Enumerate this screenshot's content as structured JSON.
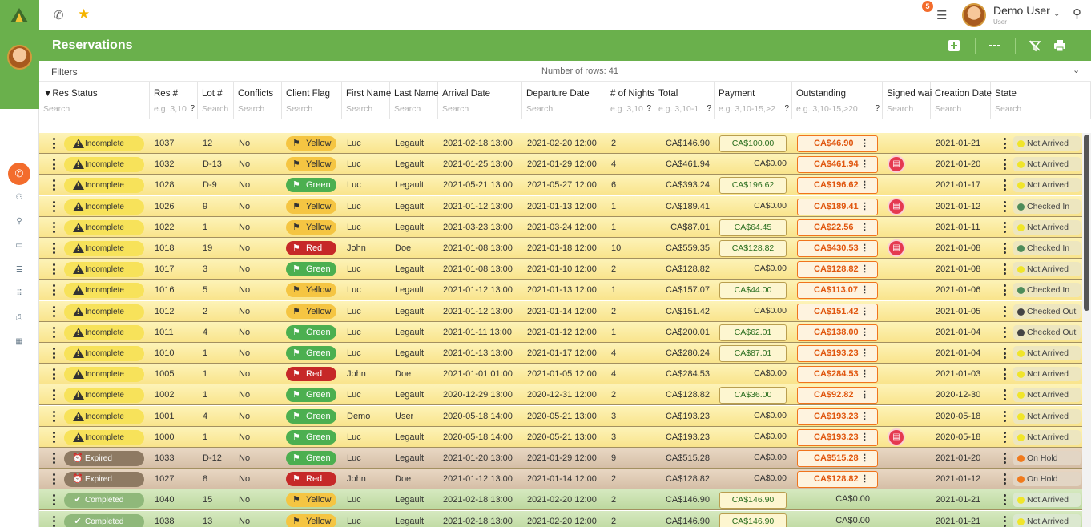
{
  "topbar": {
    "notification_count": "5",
    "user_name": "Demo User",
    "user_role": "User"
  },
  "page": {
    "title": "Reservations",
    "filters_label": "Filters",
    "rows_count_label": "Number of rows: 41"
  },
  "columns": [
    {
      "label": "▼Res Status",
      "placeholder": "Search",
      "help": ""
    },
    {
      "label": "Res #",
      "placeholder": "e.g. 3,10",
      "help": "?"
    },
    {
      "label": "Lot #",
      "placeholder": "Search",
      "help": ""
    },
    {
      "label": "Conflicts",
      "placeholder": "Search",
      "help": ""
    },
    {
      "label": "Client Flag",
      "placeholder": "Search",
      "help": ""
    },
    {
      "label": "First Name",
      "placeholder": "Search",
      "help": ""
    },
    {
      "label": "Last Name",
      "placeholder": "Search",
      "help": ""
    },
    {
      "label": "Arrival Date",
      "placeholder": "Search",
      "help": ""
    },
    {
      "label": "Departure Date",
      "placeholder": "Search",
      "help": ""
    },
    {
      "label": "# of Nights",
      "placeholder": "e.g. 3,10",
      "help": "?"
    },
    {
      "label": "Total",
      "placeholder": "e.g. 3,10-1",
      "help": "?"
    },
    {
      "label": "Payment",
      "placeholder": "e.g. 3,10-15,>2",
      "help": "?"
    },
    {
      "label": "Outstanding",
      "placeholder": "e.g. 3,10-15,>20",
      "help": "?"
    },
    {
      "label": "Signed wai",
      "placeholder": "Search",
      "help": ""
    },
    {
      "label": "Creation Date",
      "placeholder": "Search",
      "help": ""
    },
    {
      "label": "State",
      "placeholder": "Search",
      "help": ""
    }
  ],
  "colors": {
    "green": "#6ab04c",
    "orange": "#f36c2c",
    "star": "#f5b400"
  },
  "rows": [
    {
      "kind": "inc",
      "status": "Incomplete",
      "res": "1037",
      "lot": "12",
      "conflicts": "No",
      "flag": "Yellow",
      "flag_kind": "yellow",
      "first": "Luc",
      "last": "Legault",
      "arrival": "2021-02-18 13:00",
      "departure": "2021-02-20 12:00",
      "nights": "2",
      "total": "CA$146.90",
      "payment": "CA$100.00",
      "payment_boxed": true,
      "outstanding": "CA$46.90",
      "outstanding_boxed": true,
      "signed": false,
      "created": "2021-01-21",
      "state": "Not Arrived",
      "state_color": "#f0e52a"
    },
    {
      "kind": "inc",
      "status": "Incomplete",
      "res": "1032",
      "lot": "D-13",
      "conflicts": "No",
      "flag": "Yellow",
      "flag_kind": "yellow",
      "first": "Luc",
      "last": "Legault",
      "arrival": "2021-01-25 13:00",
      "departure": "2021-01-29 12:00",
      "nights": "4",
      "total": "CA$461.94",
      "payment": "CA$0.00",
      "payment_boxed": false,
      "outstanding": "CA$461.94",
      "outstanding_boxed": true,
      "signed": true,
      "created": "2021-01-20",
      "state": "Not Arrived",
      "state_color": "#f0e52a"
    },
    {
      "kind": "inc",
      "status": "Incomplete",
      "res": "1028",
      "lot": "D-9",
      "conflicts": "No",
      "flag": "Green",
      "flag_kind": "green",
      "first": "Luc",
      "last": "Legault",
      "arrival": "2021-05-21 13:00",
      "departure": "2021-05-27 12:00",
      "nights": "6",
      "total": "CA$393.24",
      "payment": "CA$196.62",
      "payment_boxed": true,
      "outstanding": "CA$196.62",
      "outstanding_boxed": true,
      "signed": false,
      "created": "2021-01-17",
      "state": "Not Arrived",
      "state_color": "#f0e52a"
    },
    {
      "kind": "inc",
      "status": "Incomplete",
      "res": "1026",
      "lot": "9",
      "conflicts": "No",
      "flag": "Yellow",
      "flag_kind": "yellow",
      "first": "Luc",
      "last": "Legault",
      "arrival": "2021-01-12 13:00",
      "departure": "2021-01-13 12:00",
      "nights": "1",
      "total": "CA$189.41",
      "payment": "CA$0.00",
      "payment_boxed": false,
      "outstanding": "CA$189.41",
      "outstanding_boxed": true,
      "signed": true,
      "created": "2021-01-12",
      "state": "Checked In",
      "state_color": "#4e8c5a"
    },
    {
      "kind": "inc",
      "status": "Incomplete",
      "res": "1022",
      "lot": "1",
      "conflicts": "No",
      "flag": "Yellow",
      "flag_kind": "yellow",
      "first": "Luc",
      "last": "Legault",
      "arrival": "2021-03-23 13:00",
      "departure": "2021-03-24 12:00",
      "nights": "1",
      "total": "CA$87.01",
      "payment": "CA$64.45",
      "payment_boxed": true,
      "outstanding": "CA$22.56",
      "outstanding_boxed": true,
      "signed": false,
      "created": "2021-01-11",
      "state": "Not Arrived",
      "state_color": "#f0e52a"
    },
    {
      "kind": "inc",
      "status": "Incomplete",
      "res": "1018",
      "lot": "19",
      "conflicts": "No",
      "flag": "Red",
      "flag_kind": "red",
      "first": "John",
      "last": "Doe",
      "arrival": "2021-01-08 13:00",
      "departure": "2021-01-18 12:00",
      "nights": "10",
      "total": "CA$559.35",
      "payment": "CA$128.82",
      "payment_boxed": true,
      "outstanding": "CA$430.53",
      "outstanding_boxed": true,
      "signed": true,
      "created": "2021-01-08",
      "state": "Checked In",
      "state_color": "#4e8c5a"
    },
    {
      "kind": "inc",
      "status": "Incomplete",
      "res": "1017",
      "lot": "3",
      "conflicts": "No",
      "flag": "Green",
      "flag_kind": "green",
      "first": "Luc",
      "last": "Legault",
      "arrival": "2021-01-08 13:00",
      "departure": "2021-01-10 12:00",
      "nights": "2",
      "total": "CA$128.82",
      "payment": "CA$0.00",
      "payment_boxed": false,
      "outstanding": "CA$128.82",
      "outstanding_boxed": true,
      "signed": false,
      "created": "2021-01-08",
      "state": "Not Arrived",
      "state_color": "#f0e52a"
    },
    {
      "kind": "inc",
      "status": "Incomplete",
      "res": "1016",
      "lot": "5",
      "conflicts": "No",
      "flag": "Yellow",
      "flag_kind": "yellow",
      "first": "Luc",
      "last": "Legault",
      "arrival": "2021-01-12 13:00",
      "departure": "2021-01-13 12:00",
      "nights": "1",
      "total": "CA$157.07",
      "payment": "CA$44.00",
      "payment_boxed": true,
      "outstanding": "CA$113.07",
      "outstanding_boxed": true,
      "signed": false,
      "created": "2021-01-06",
      "state": "Checked In",
      "state_color": "#4e8c5a"
    },
    {
      "kind": "inc",
      "status": "Incomplete",
      "res": "1012",
      "lot": "2",
      "conflicts": "No",
      "flag": "Yellow",
      "flag_kind": "yellow",
      "first": "Luc",
      "last": "Legault",
      "arrival": "2021-01-12 13:00",
      "departure": "2021-01-14 12:00",
      "nights": "2",
      "total": "CA$151.42",
      "payment": "CA$0.00",
      "payment_boxed": false,
      "outstanding": "CA$151.42",
      "outstanding_boxed": true,
      "signed": false,
      "created": "2021-01-05",
      "state": "Checked Out",
      "state_color": "#444444"
    },
    {
      "kind": "inc",
      "status": "Incomplete",
      "res": "1011",
      "lot": "4",
      "conflicts": "No",
      "flag": "Green",
      "flag_kind": "green",
      "first": "Luc",
      "last": "Legault",
      "arrival": "2021-01-11 13:00",
      "departure": "2021-01-12 12:00",
      "nights": "1",
      "total": "CA$200.01",
      "payment": "CA$62.01",
      "payment_boxed": true,
      "outstanding": "CA$138.00",
      "outstanding_boxed": true,
      "signed": false,
      "created": "2021-01-04",
      "state": "Checked Out",
      "state_color": "#444444"
    },
    {
      "kind": "inc",
      "status": "Incomplete",
      "res": "1010",
      "lot": "1",
      "conflicts": "No",
      "flag": "Green",
      "flag_kind": "green",
      "first": "Luc",
      "last": "Legault",
      "arrival": "2021-01-13 13:00",
      "departure": "2021-01-17 12:00",
      "nights": "4",
      "total": "CA$280.24",
      "payment": "CA$87.01",
      "payment_boxed": true,
      "outstanding": "CA$193.23",
      "outstanding_boxed": true,
      "signed": false,
      "created": "2021-01-04",
      "state": "Not Arrived",
      "state_color": "#f0e52a"
    },
    {
      "kind": "inc",
      "status": "Incomplete",
      "res": "1005",
      "lot": "1",
      "conflicts": "No",
      "flag": "Red",
      "flag_kind": "red",
      "first": "John",
      "last": "Doe",
      "arrival": "2021-01-01 01:00",
      "departure": "2021-01-05 12:00",
      "nights": "4",
      "total": "CA$284.53",
      "payment": "CA$0.00",
      "payment_boxed": false,
      "outstanding": "CA$284.53",
      "outstanding_boxed": true,
      "signed": false,
      "created": "2021-01-03",
      "state": "Not Arrived",
      "state_color": "#f0e52a"
    },
    {
      "kind": "inc",
      "status": "Incomplete",
      "res": "1002",
      "lot": "1",
      "conflicts": "No",
      "flag": "Green",
      "flag_kind": "green",
      "first": "Luc",
      "last": "Legault",
      "arrival": "2020-12-29 13:00",
      "departure": "2020-12-31 12:00",
      "nights": "2",
      "total": "CA$128.82",
      "payment": "CA$36.00",
      "payment_boxed": true,
      "outstanding": "CA$92.82",
      "outstanding_boxed": true,
      "signed": false,
      "created": "2020-12-30",
      "state": "Not Arrived",
      "state_color": "#f0e52a"
    },
    {
      "kind": "inc",
      "status": "Incomplete",
      "res": "1001",
      "lot": "4",
      "conflicts": "No",
      "flag": "Green",
      "flag_kind": "green",
      "first": "Demo",
      "last": "User",
      "arrival": "2020-05-18 14:00",
      "departure": "2020-05-21 13:00",
      "nights": "3",
      "total": "CA$193.23",
      "payment": "CA$0.00",
      "payment_boxed": false,
      "outstanding": "CA$193.23",
      "outstanding_boxed": true,
      "signed": false,
      "created": "2020-05-18",
      "state": "Not Arrived",
      "state_color": "#f0e52a"
    },
    {
      "kind": "inc",
      "status": "Incomplete",
      "res": "1000",
      "lot": "1",
      "conflicts": "No",
      "flag": "Green",
      "flag_kind": "green",
      "first": "Luc",
      "last": "Legault",
      "arrival": "2020-05-18 14:00",
      "departure": "2020-05-21 13:00",
      "nights": "3",
      "total": "CA$193.23",
      "payment": "CA$0.00",
      "payment_boxed": false,
      "outstanding": "CA$193.23",
      "outstanding_boxed": true,
      "signed": true,
      "created": "2020-05-18",
      "state": "Not Arrived",
      "state_color": "#f0e52a"
    },
    {
      "kind": "exp",
      "status": "Expired",
      "res": "1033",
      "lot": "D-12",
      "conflicts": "No",
      "flag": "Green",
      "flag_kind": "green",
      "first": "Luc",
      "last": "Legault",
      "arrival": "2021-01-20 13:00",
      "departure": "2021-01-29 12:00",
      "nights": "9",
      "total": "CA$515.28",
      "payment": "CA$0.00",
      "payment_boxed": false,
      "outstanding": "CA$515.28",
      "outstanding_boxed": true,
      "signed": false,
      "created": "2021-01-20",
      "state": "On Hold",
      "state_color": "#f07a1c"
    },
    {
      "kind": "exp",
      "status": "Expired",
      "res": "1027",
      "lot": "8",
      "conflicts": "No",
      "flag": "Red",
      "flag_kind": "red",
      "first": "John",
      "last": "Doe",
      "arrival": "2021-01-12 13:00",
      "departure": "2021-01-14 12:00",
      "nights": "2",
      "total": "CA$128.82",
      "payment": "CA$0.00",
      "payment_boxed": false,
      "outstanding": "CA$128.82",
      "outstanding_boxed": true,
      "signed": false,
      "created": "2021-01-12",
      "state": "On Hold",
      "state_color": "#f07a1c"
    },
    {
      "kind": "com",
      "status": "Completed",
      "res": "1040",
      "lot": "15",
      "conflicts": "No",
      "flag": "Yellow",
      "flag_kind": "yellow",
      "first": "Luc",
      "last": "Legault",
      "arrival": "2021-02-18 13:00",
      "departure": "2021-02-20 12:00",
      "nights": "2",
      "total": "CA$146.90",
      "payment": "CA$146.90",
      "payment_boxed": true,
      "outstanding": "CA$0.00",
      "outstanding_boxed": false,
      "signed": false,
      "created": "2021-01-21",
      "state": "Not Arrived",
      "state_color": "#f0e52a"
    },
    {
      "kind": "com",
      "status": "Completed",
      "res": "1038",
      "lot": "13",
      "conflicts": "No",
      "flag": "Yellow",
      "flag_kind": "yellow",
      "first": "Luc",
      "last": "Legault",
      "arrival": "2021-02-18 13:00",
      "departure": "2021-02-20 12:00",
      "nights": "2",
      "total": "CA$146.90",
      "payment": "CA$146.90",
      "payment_boxed": true,
      "outstanding": "CA$0.00",
      "outstanding_boxed": false,
      "signed": false,
      "created": "2021-01-21",
      "state": "Not Arrived",
      "state_color": "#f0e52a"
    }
  ]
}
